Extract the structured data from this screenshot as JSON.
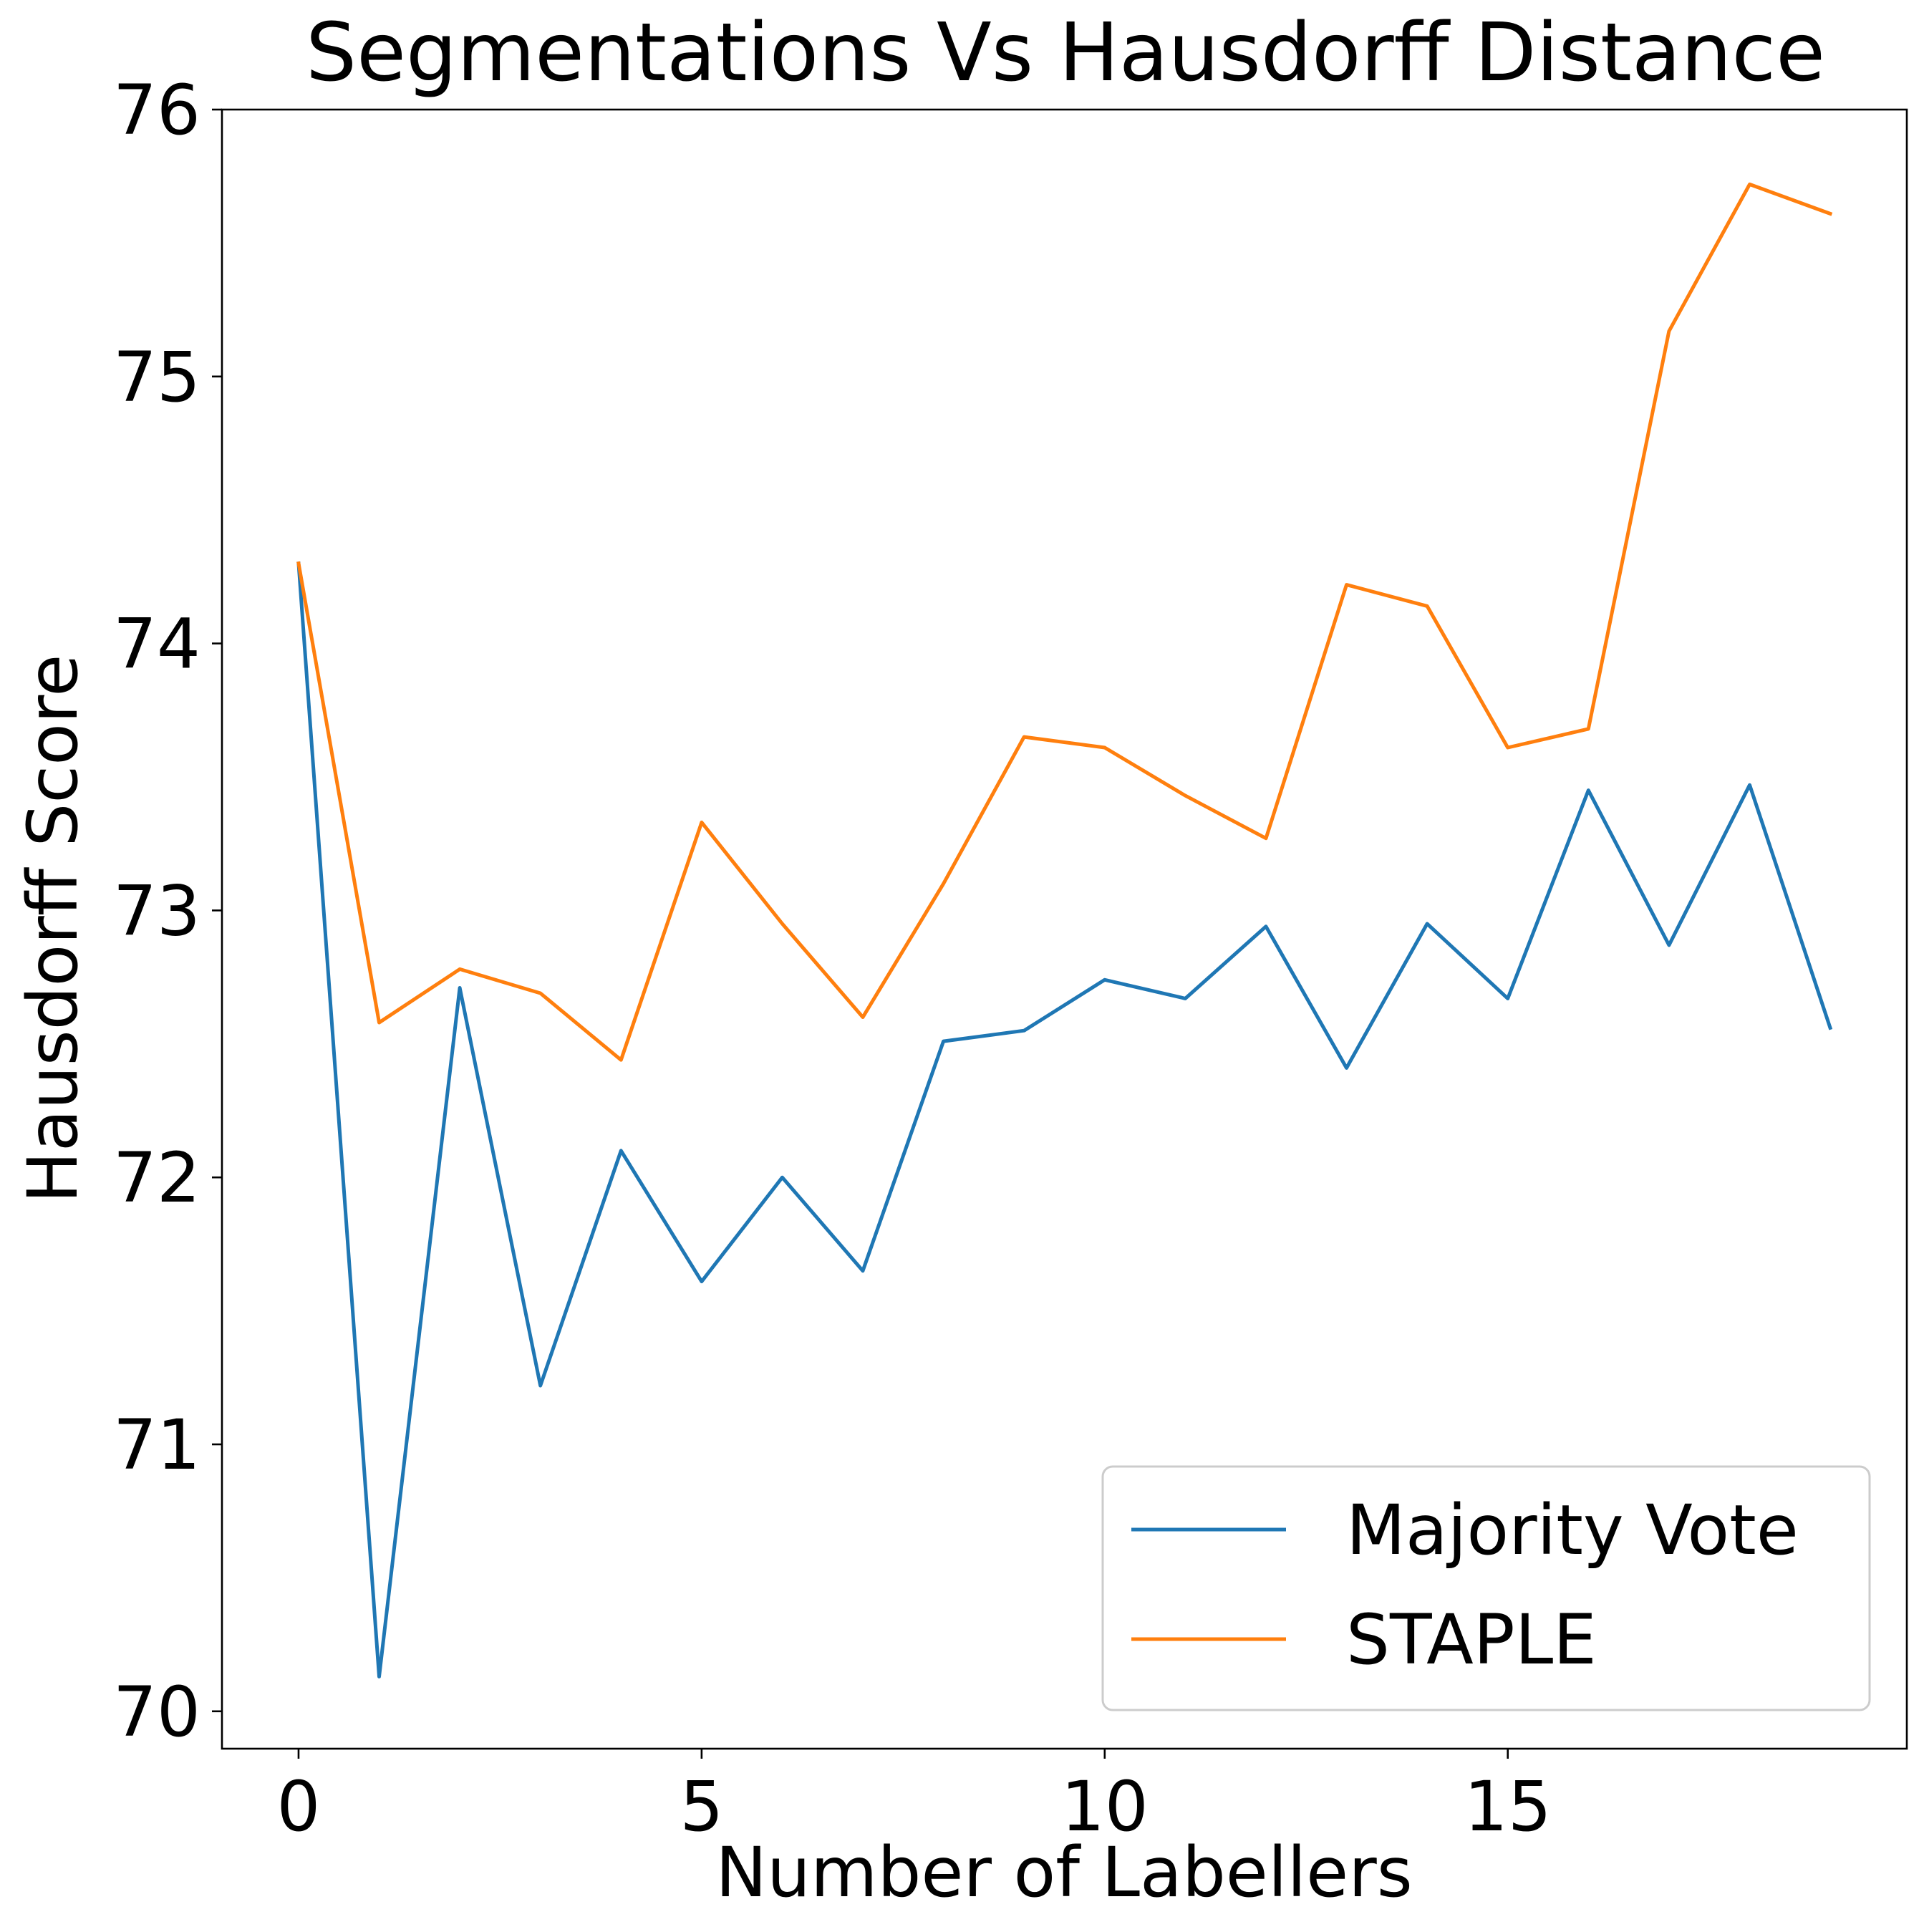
{
  "chart_data": {
    "type": "line",
    "title": "Segmentations Vs Hausdorff Distance",
    "xlabel": "Number of Labellers",
    "ylabel": "Hausdorff Score",
    "xlim": [
      -0.95,
      19.95
    ],
    "ylim": [
      69.86,
      76.0
    ],
    "xticks": [
      0,
      5,
      10,
      15
    ],
    "yticks": [
      70,
      71,
      72,
      73,
      74,
      75,
      76
    ],
    "grid": false,
    "legend_position": "lower right",
    "x": [
      0,
      1,
      2,
      3,
      4,
      5,
      6,
      7,
      8,
      9,
      10,
      11,
      12,
      13,
      14,
      15,
      16,
      17,
      18,
      19
    ],
    "series": [
      {
        "name": "Majority Vote",
        "color": "#1f77b4",
        "values": [
          74.3,
          70.13,
          72.71,
          71.22,
          72.1,
          71.61,
          72.0,
          71.65,
          72.51,
          72.55,
          72.74,
          72.67,
          72.94,
          72.41,
          72.95,
          72.67,
          73.45,
          72.87,
          73.47,
          72.56
        ]
      },
      {
        "name": "STAPLE",
        "color": "#ff7f0e",
        "values": [
          74.3,
          72.58,
          72.78,
          72.69,
          72.44,
          73.33,
          72.95,
          72.6,
          73.1,
          73.65,
          73.61,
          73.43,
          73.27,
          74.22,
          74.14,
          73.61,
          73.68,
          75.17,
          75.72,
          75.61
        ]
      }
    ]
  }
}
